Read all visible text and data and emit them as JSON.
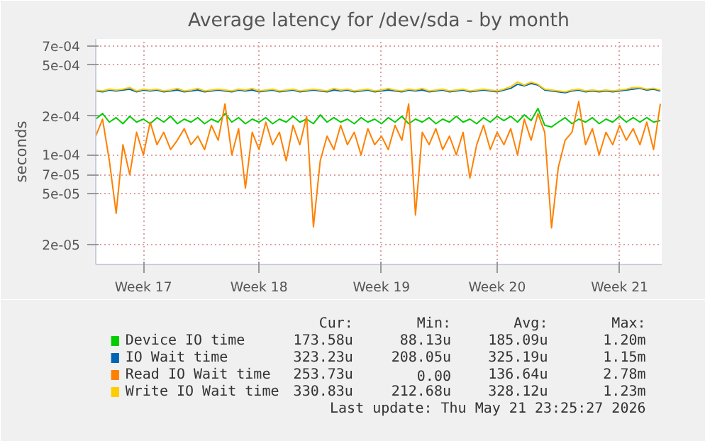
{
  "chart_data": {
    "type": "line",
    "title": "Average latency for /dev/sda - by month",
    "ylabel": "seconds",
    "log": "y",
    "grid": true,
    "legend": "bottom",
    "ylim": [
      1.4e-05,
      0.0008
    ],
    "yticks": [
      {
        "value": 2e-05,
        "label": "2e-05"
      },
      {
        "value": 5e-05,
        "label": "5e-05"
      },
      {
        "value": 7e-05,
        "label": "7e-05"
      },
      {
        "value": 0.0001,
        "label": "1e-04"
      },
      {
        "value": 0.0002,
        "label": "2e-04"
      },
      {
        "value": 0.0005,
        "label": "5e-04"
      },
      {
        "value": 0.0007,
        "label": "7e-04"
      }
    ],
    "categories": [
      null,
      null,
      null,
      null,
      null,
      null,
      null,
      "Week 17",
      null,
      null,
      null,
      null,
      null,
      null,
      null,
      null,
      null,
      null,
      null,
      null,
      null,
      null,
      null,
      null,
      "Week 18",
      null,
      null,
      null,
      null,
      null,
      null,
      null,
      null,
      null,
      null,
      null,
      null,
      null,
      null,
      null,
      null,
      null,
      "Week 19",
      null,
      null,
      null,
      null,
      null,
      null,
      null,
      null,
      null,
      null,
      null,
      null,
      null,
      null,
      null,
      null,
      "Week 20",
      null,
      null,
      null,
      null,
      null,
      null,
      null,
      null,
      null,
      null,
      null,
      null,
      null,
      null,
      null,
      null,
      null,
      "Week 21",
      null,
      null,
      null,
      null,
      null,
      null
    ],
    "series": [
      {
        "name": "Device IO time",
        "color": "#00cc00",
        "values": [
          0.00019,
          0.00021,
          0.00018,
          0.000195,
          0.000175,
          0.0002,
          0.00018,
          0.00019,
          0.000175,
          0.000195,
          0.00018,
          0.0002,
          0.000175,
          0.00019,
          0.00018,
          0.000195,
          0.000175,
          0.00019,
          0.00018,
          0.00021,
          0.00018,
          0.000195,
          0.000175,
          0.00019,
          0.00018,
          0.000195,
          0.000175,
          0.00019,
          0.00018,
          0.0002,
          0.00018,
          0.00019,
          0.000175,
          0.000205,
          0.00018,
          0.000195,
          0.00018,
          0.00019,
          0.000175,
          0.000195,
          0.00018,
          0.00019,
          0.000175,
          0.000195,
          0.00018,
          0.0002,
          0.000175,
          0.00019,
          0.00018,
          0.000195,
          0.000175,
          0.00019,
          0.00018,
          0.0002,
          0.00018,
          0.00019,
          0.000175,
          0.000195,
          0.00018,
          0.0002,
          0.000185,
          0.0002,
          0.00018,
          0.000205,
          0.000185,
          0.00023,
          0.00017,
          0.000165,
          0.00018,
          0.000195,
          0.000175,
          0.00019,
          0.00018,
          0.000195,
          0.000175,
          0.00019,
          0.00018,
          0.0002,
          0.00018,
          0.000195,
          0.00018,
          0.000195,
          0.00018,
          0.000185
        ]
      },
      {
        "name": "IO Wait time",
        "color": "#0066b3",
        "values": [
          0.000315,
          0.00031,
          0.00032,
          0.000315,
          0.00032,
          0.000325,
          0.00031,
          0.00032,
          0.000315,
          0.00032,
          0.00031,
          0.000315,
          0.00032,
          0.00031,
          0.000315,
          0.00032,
          0.00031,
          0.000315,
          0.00032,
          0.000315,
          0.00031,
          0.00032,
          0.000315,
          0.00032,
          0.00031,
          0.000315,
          0.00032,
          0.00031,
          0.000315,
          0.00032,
          0.00031,
          0.000315,
          0.00032,
          0.000315,
          0.00031,
          0.00032,
          0.000315,
          0.00032,
          0.00031,
          0.000315,
          0.00032,
          0.00031,
          0.000315,
          0.00032,
          0.000315,
          0.00031,
          0.00032,
          0.000315,
          0.00032,
          0.00031,
          0.000315,
          0.00032,
          0.00031,
          0.000315,
          0.00032,
          0.00031,
          0.000315,
          0.00032,
          0.000315,
          0.00031,
          0.00032,
          0.00033,
          0.000355,
          0.000345,
          0.00036,
          0.00035,
          0.00032,
          0.000315,
          0.00031,
          0.000305,
          0.000315,
          0.00032,
          0.00031,
          0.000315,
          0.00031,
          0.000315,
          0.00031,
          0.000315,
          0.00032,
          0.000325,
          0.00033,
          0.00032,
          0.000325,
          0.000315
        ]
      },
      {
        "name": "Read IO Wait time",
        "color": "#ff8000",
        "values": [
          0.00014,
          0.00019,
          9e-05,
          3.5e-05,
          0.00012,
          7e-05,
          0.00015,
          0.0001,
          0.00018,
          0.00012,
          0.00015,
          0.00011,
          0.00013,
          0.00016,
          0.00012,
          0.00014,
          0.00011,
          0.00017,
          0.00013,
          0.00025,
          0.0001,
          0.00016,
          5.5e-05,
          0.00015,
          0.00011,
          0.00018,
          0.00012,
          0.00015,
          9e-05,
          0.00017,
          0.00012,
          0.0002,
          2.75e-05,
          9e-05,
          0.00014,
          0.00011,
          0.00017,
          0.00012,
          0.00015,
          0.0001,
          0.00016,
          0.00012,
          0.00014,
          0.00011,
          0.00017,
          0.00013,
          0.00025,
          3.4e-05,
          0.00015,
          0.00012,
          0.00016,
          0.00011,
          0.00014,
          0.0001,
          0.00015,
          6.6e-05,
          0.00012,
          0.00017,
          0.00011,
          0.00015,
          0.00012,
          0.00016,
          0.0001,
          0.00019,
          0.00013,
          0.00021,
          0.00015,
          2.7e-05,
          8e-05,
          0.00013,
          0.00015,
          0.00026,
          0.00012,
          0.00016,
          0.0001,
          0.00015,
          0.00012,
          0.00017,
          0.00013,
          0.00016,
          0.00012,
          0.00018,
          0.00011,
          0.00025
        ]
      },
      {
        "name": "Write IO Wait time",
        "color": "#ffcc00",
        "values": [
          0.00032,
          0.000315,
          0.000325,
          0.00032,
          0.000325,
          0.000335,
          0.000315,
          0.000325,
          0.00032,
          0.000325,
          0.000315,
          0.00032,
          0.00033,
          0.000315,
          0.00032,
          0.00033,
          0.000315,
          0.00032,
          0.000325,
          0.00032,
          0.000315,
          0.000325,
          0.00032,
          0.00033,
          0.000315,
          0.00032,
          0.000325,
          0.000315,
          0.00032,
          0.000325,
          0.000315,
          0.00032,
          0.000325,
          0.00032,
          0.000315,
          0.00033,
          0.00032,
          0.000325,
          0.000315,
          0.00032,
          0.000325,
          0.000315,
          0.00032,
          0.00033,
          0.00032,
          0.000315,
          0.000325,
          0.00032,
          0.00033,
          0.000315,
          0.00032,
          0.000325,
          0.000315,
          0.00032,
          0.000325,
          0.000315,
          0.00032,
          0.000325,
          0.00032,
          0.000315,
          0.000325,
          0.00034,
          0.00037,
          0.00035,
          0.00037,
          0.000355,
          0.000325,
          0.00032,
          0.000315,
          0.00031,
          0.00032,
          0.000325,
          0.000315,
          0.00032,
          0.000315,
          0.00032,
          0.000315,
          0.00032,
          0.000325,
          0.000335,
          0.000335,
          0.000325,
          0.00033,
          0.00032
        ]
      }
    ],
    "annotations": [
      "Cur:",
      "Min:",
      "Avg:",
      "Max:",
      "173.58u",
      "88.13u",
      "185.09u",
      "1.20m",
      "323.23u",
      "208.05u",
      "325.19u",
      "1.15m",
      "253.73u",
      "0.00",
      "136.64u",
      "2.78m",
      "330.83u",
      "212.68u",
      "328.12u",
      "1.23m",
      "Last update: Thu May 21 23:25:27 2026"
    ]
  }
}
